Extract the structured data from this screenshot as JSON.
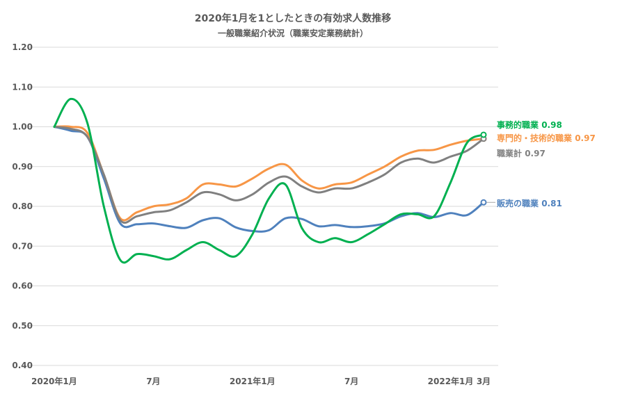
{
  "chart_data": {
    "type": "line",
    "title": "2020年1月を1としたときの有効求人数推移",
    "subtitle": "一般職業紹介状況（職業安定業務統計）",
    "xlabel": "",
    "ylabel": "",
    "ylim": [
      0.4,
      1.2
    ],
    "yticks": [
      "0.40",
      "0.50",
      "0.60",
      "0.70",
      "0.80",
      "0.90",
      "1.00",
      "1.10",
      "1.20"
    ],
    "grid": true,
    "legend": "end-labels",
    "x": [
      "2020-01",
      "2020-02",
      "2020-03",
      "2020-04",
      "2020-05",
      "2020-06",
      "2020-07",
      "2020-08",
      "2020-09",
      "2020-10",
      "2020-11",
      "2020-12",
      "2021-01",
      "2021-02",
      "2021-03",
      "2021-04",
      "2021-05",
      "2021-06",
      "2021-07",
      "2021-08",
      "2021-09",
      "2021-10",
      "2021-11",
      "2021-12",
      "2022-01",
      "2022-02",
      "2022-03"
    ],
    "xtick_labels": [
      {
        "index": 0,
        "label": "2020年1月"
      },
      {
        "index": 6,
        "label": "7月"
      },
      {
        "index": 12,
        "label": "2021年1月"
      },
      {
        "index": 18,
        "label": "7月"
      },
      {
        "index": 24,
        "label": "2022年1月"
      },
      {
        "index": 26,
        "label": "3月"
      }
    ],
    "series": [
      {
        "name": "事務的職業",
        "end_value": "0.98",
        "color": "#00b050",
        "values": [
          1.0,
          1.07,
          1.01,
          0.8,
          0.665,
          0.68,
          0.675,
          0.667,
          0.69,
          0.71,
          0.69,
          0.675,
          0.73,
          0.82,
          0.855,
          0.745,
          0.71,
          0.72,
          0.71,
          0.73,
          0.755,
          0.78,
          0.78,
          0.775,
          0.86,
          0.96,
          0.98
        ]
      },
      {
        "name": "専門的・技術的職業",
        "end_value": "0.97",
        "color": "#f79646",
        "values": [
          1.0,
          1.0,
          0.985,
          0.88,
          0.77,
          0.785,
          0.8,
          0.805,
          0.82,
          0.855,
          0.855,
          0.85,
          0.87,
          0.895,
          0.905,
          0.865,
          0.845,
          0.855,
          0.86,
          0.88,
          0.9,
          0.925,
          0.94,
          0.942,
          0.955,
          0.965,
          0.97
        ]
      },
      {
        "name": "職業計",
        "end_value": "0.97",
        "color": "#808080",
        "values": [
          1.0,
          0.995,
          0.975,
          0.88,
          0.765,
          0.775,
          0.785,
          0.79,
          0.81,
          0.835,
          0.83,
          0.815,
          0.83,
          0.86,
          0.875,
          0.85,
          0.835,
          0.845,
          0.845,
          0.86,
          0.88,
          0.91,
          0.92,
          0.91,
          0.925,
          0.94,
          0.97
        ]
      },
      {
        "name": "販売の職業",
        "end_value": "0.81",
        "color": "#4f81bd",
        "values": [
          1.0,
          0.99,
          0.975,
          0.87,
          0.757,
          0.755,
          0.757,
          0.75,
          0.746,
          0.765,
          0.77,
          0.747,
          0.738,
          0.74,
          0.77,
          0.768,
          0.75,
          0.753,
          0.748,
          0.75,
          0.757,
          0.775,
          0.783,
          0.773,
          0.783,
          0.778,
          0.81
        ]
      }
    ]
  }
}
